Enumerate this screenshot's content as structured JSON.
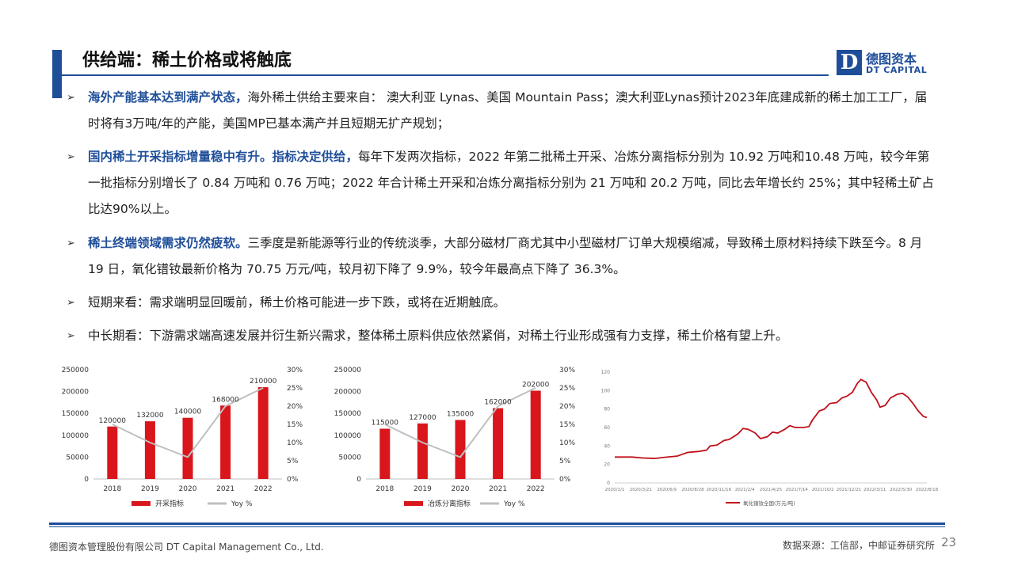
{
  "title": "供给端：稀土价格或将触底",
  "logo": {
    "cn": "德图资本",
    "en": "DT CAPITAL",
    "mark": "D"
  },
  "bullets": [
    {
      "highlight": "海外产能基本达到满产状态，",
      "text": "海外稀土供给主要来自： 澳大利亚 Lynas、美国 Mountain Pass；澳大利亚Lynas预计2023年底建成新的稀土加工工厂，届时将有3万吨/年的产能，美国MP已基本满产并且短期无扩产规划；"
    },
    {
      "highlight": "国内稀土开采指标增量稳中有升。指标决定供给，",
      "text": "每年下发两次指标，2022 年第二批稀土开采、冶炼分离指标分别为 10.92 万吨和10.48 万吨，较今年第一批指标分别增长了 0.84 万吨和 0.76 万吨；2022 年合计稀土开采和冶炼分离指标分别为 21 万吨和 20.2 万吨，同比去年增长约 25%；其中轻稀土矿占比达90%以上。"
    },
    {
      "highlight": "稀土终端领域需求仍然疲软。",
      "text": "三季度是新能源等行业的传统淡季，大部分磁材厂商尤其中小型磁材厂订单大规模缩减，导致稀土原材料持续下跌至今。8 月 19 日，氧化镨钕最新价格为 70.75 万元/吨，较月初下降了 9.9%，较今年最高点下降了 36.3%。"
    },
    {
      "highlight": "",
      "text": "短期来看：需求端明显回暖前，稀土价格可能进一步下跌，或将在近期触底。"
    },
    {
      "highlight": "",
      "text": "中长期看：下游需求端高速发展并衍生新兴需求，整体稀土原料供应依然紧俏，对稀土行业形成强有力支撑，稀土价格有望上升。"
    }
  ],
  "chart_data": [
    {
      "type": "bar",
      "categories": [
        "2018",
        "2019",
        "2020",
        "2021",
        "2022"
      ],
      "series": [
        {
          "name": "开采指标",
          "kind": "bar",
          "axis": "left",
          "values": [
            120000,
            132000,
            140000,
            168000,
            210000
          ],
          "labels": [
            "120000",
            "132000",
            "140000",
            "168000",
            "210000"
          ],
          "color": "#d9161c"
        },
        {
          "name": "Yoy  %",
          "kind": "line",
          "axis": "right",
          "values": [
            15,
            10,
            6,
            20,
            25
          ],
          "color": "#bfbfbf"
        }
      ],
      "left_ticks": [
        "0",
        "50000",
        "100000",
        "150000",
        "200000",
        "250000"
      ],
      "right_ticks": [
        "0%",
        "5%",
        "10%",
        "15%",
        "20%",
        "25%",
        "30%"
      ],
      "ylim": [
        0,
        250000
      ],
      "y2lim": [
        0,
        30
      ],
      "legend": "bottom"
    },
    {
      "type": "bar",
      "categories": [
        "2018",
        "2019",
        "2020",
        "2021",
        "2022"
      ],
      "series": [
        {
          "name": "冶炼分离指标",
          "kind": "bar",
          "axis": "left",
          "values": [
            115000,
            127000,
            135000,
            162000,
            202000
          ],
          "labels": [
            "115000",
            "127000",
            "135000",
            "162000",
            "202000"
          ],
          "color": "#d9161c"
        },
        {
          "name": "Yoy  %",
          "kind": "line",
          "axis": "right",
          "values": [
            15,
            10,
            6,
            20,
            25
          ],
          "color": "#bfbfbf"
        }
      ],
      "left_ticks": [
        "0",
        "50000",
        "100000",
        "150000",
        "200000",
        "250000"
      ],
      "right_ticks": [
        "0%",
        "5%",
        "10%",
        "15%",
        "20%",
        "25%",
        "30%"
      ],
      "ylim": [
        0,
        250000
      ],
      "y2lim": [
        0,
        30
      ],
      "legend": "bottom"
    },
    {
      "type": "line",
      "x_ticks": [
        "2020/1/1",
        "2020/3/21",
        "2020/6/9",
        "2020/8/28",
        "2020/11/16",
        "2021/2/4",
        "2021/4/25",
        "2021/7/14",
        "2021/10/2",
        "2021/12/21",
        "2022/3/11",
        "2022/5/30",
        "2022/8/18"
      ],
      "y_ticks": [
        "0",
        "20",
        "40",
        "60",
        "80",
        "100",
        "120"
      ],
      "ylim": [
        0,
        120
      ],
      "series": [
        {
          "name": "氧化镨钕全国(万元/吨)",
          "color": "#c0111a",
          "points": [
            [
              0,
              28
            ],
            [
              1,
              28
            ],
            [
              1.6,
              27
            ],
            [
              2.3,
              26.5
            ],
            [
              3,
              28
            ],
            [
              3.6,
              29
            ],
            [
              4.2,
              33
            ],
            [
              4.8,
              34
            ],
            [
              5.3,
              35.5
            ],
            [
              5.5,
              40
            ],
            [
              5.9,
              41
            ],
            [
              6.3,
              46
            ],
            [
              6.6,
              47
            ],
            [
              7.1,
              53
            ],
            [
              7.4,
              59
            ],
            [
              7.7,
              58
            ],
            [
              8.1,
              54
            ],
            [
              8.4,
              48
            ],
            [
              8.8,
              50
            ],
            [
              9.1,
              55
            ],
            [
              9.4,
              54
            ],
            [
              9.8,
              58
            ],
            [
              10.1,
              62
            ],
            [
              10.4,
              60
            ],
            [
              10.9,
              60
            ],
            [
              11.2,
              61
            ],
            [
              11.4,
              68
            ],
            [
              11.8,
              78
            ],
            [
              12.1,
              80
            ],
            [
              12.4,
              86
            ],
            [
              12.8,
              87
            ],
            [
              13.1,
              92
            ],
            [
              13.4,
              94
            ],
            [
              13.7,
              98
            ],
            [
              14,
              108
            ],
            [
              14.2,
              112
            ],
            [
              14.5,
              109
            ],
            [
              14.8,
              98
            ],
            [
              15.1,
              90
            ],
            [
              15.3,
              82
            ],
            [
              15.6,
              84
            ],
            [
              15.9,
              92
            ],
            [
              16.3,
              96
            ],
            [
              16.6,
              97
            ],
            [
              16.9,
              93
            ],
            [
              17.2,
              86
            ],
            [
              17.5,
              78
            ],
            [
              17.8,
              72
            ],
            [
              18,
              70.75
            ]
          ],
          "x_max": 18
        }
      ],
      "legend": "bottom"
    }
  ],
  "footer": {
    "company": "德图资本管理股份有限公司 DT Capital Management Co., Ltd.",
    "source": "数据来源：工信部，中邮证券研究所",
    "page": "23"
  }
}
